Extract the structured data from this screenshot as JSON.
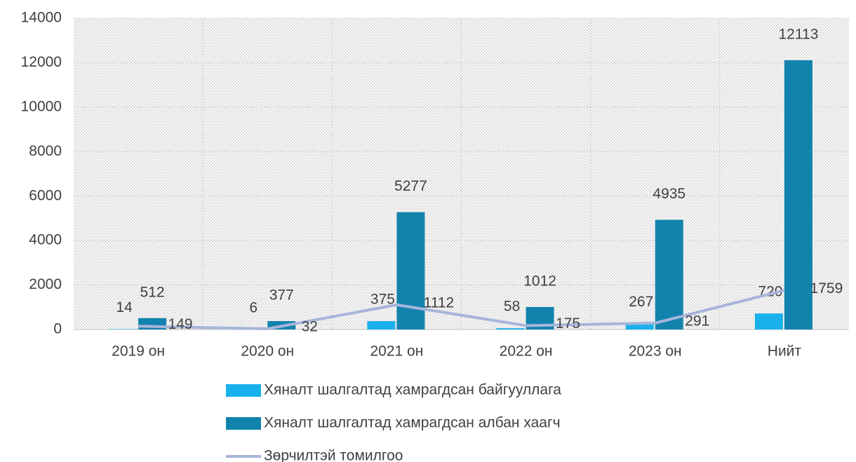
{
  "chart_data": {
    "type": "bar",
    "categories": [
      "2019 он",
      "2020 он",
      "2021 он",
      "2022 он",
      "2023 он",
      "Нийт"
    ],
    "series": [
      {
        "name": "Хяналт шалгалтад хамрагдсан байгууллага",
        "color": "#19b1ec",
        "type": "bar",
        "values": [
          14,
          6,
          375,
          58,
          267,
          720
        ]
      },
      {
        "name": "Хяналт шалгалтад хамрагдсан албан хаагч",
        "color": "#1283ad",
        "type": "bar",
        "values": [
          512,
          377,
          5277,
          1012,
          4935,
          12113
        ]
      },
      {
        "name": "Зөрчилтэй томилгоо",
        "color": "#a7b5da",
        "type": "line",
        "values": [
          149,
          32,
          1112,
          175,
          291,
          1759
        ]
      }
    ],
    "ylim": [
      0,
      14000
    ],
    "yticks": [
      0,
      2000,
      4000,
      6000,
      8000,
      10000,
      12000,
      14000
    ],
    "grid": true
  }
}
